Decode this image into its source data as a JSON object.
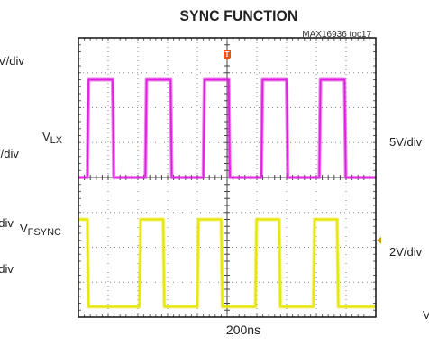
{
  "chart_data": {
    "type": "line",
    "title": "SYNC FUNCTION",
    "figure_tag": "MAX16936 toc17",
    "x_scale_label": "200ns",
    "x_divisions": 10,
    "y_divisions": 8,
    "left_labels": [
      "V/div",
      "V/div",
      "V/div",
      "V/div"
    ],
    "right_labels": [
      "5V/div",
      "2V/div",
      "V"
    ],
    "trigger_marker": "T",
    "series": [
      {
        "name": "VLX",
        "name_main": "V",
        "name_sub": "LX",
        "color": "#e020e0",
        "level_low_div": 4.0,
        "level_high_div": 6.8,
        "rise_times_div": [
          0.3,
          2.25,
          4.2,
          6.15,
          8.1
        ],
        "fall_times_div": [
          1.15,
          3.1,
          5.05,
          7.0,
          8.95
        ]
      },
      {
        "name": "VFSYNC",
        "name_main": "V",
        "name_sub": "FSYNC",
        "color": "#e6e600",
        "level_low_div": 0.3,
        "level_high_div": 2.8,
        "rise_times_div": [
          2.05,
          4.0,
          5.95,
          7.9
        ],
        "fall_times_div": [
          0.3,
          2.85,
          4.8,
          6.75,
          8.7
        ]
      }
    ]
  }
}
